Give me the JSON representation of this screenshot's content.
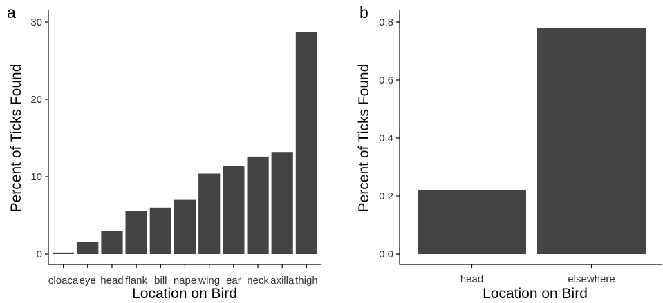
{
  "colors": {
    "bar": "#444444",
    "axis": "#000000",
    "background": "#ffffff"
  },
  "chart_data": [
    {
      "panel_label": "a",
      "type": "bar",
      "categories": [
        "cloaca",
        "eye",
        "head",
        "flank",
        "bill",
        "nape",
        "wing",
        "ear",
        "neck",
        "axilla",
        "thigh"
      ],
      "values": [
        0.2,
        1.6,
        3.0,
        5.6,
        6.0,
        7.0,
        10.4,
        11.4,
        12.6,
        13.2,
        28.7
      ],
      "ylim": [
        0,
        30
      ],
      "yticks": [
        0,
        10,
        20,
        30
      ],
      "ytick_labels": [
        "0",
        "10",
        "20",
        "30"
      ],
      "xlabel": "Location on Bird",
      "ylabel": "Percent of Ticks Found",
      "grid": false,
      "legend": "none"
    },
    {
      "panel_label": "b",
      "type": "bar",
      "categories": [
        "head",
        "elsewhere"
      ],
      "values": [
        0.22,
        0.78
      ],
      "ylim": [
        0,
        0.8
      ],
      "yticks": [
        0,
        0.2,
        0.4,
        0.6,
        0.8
      ],
      "ytick_labels": [
        "0.0",
        "0.2",
        "0.4",
        "0.6",
        "0.8"
      ],
      "xlabel": "Location on Bird",
      "ylabel": "Percent of Ticks Found",
      "grid": false,
      "legend": "none"
    }
  ]
}
